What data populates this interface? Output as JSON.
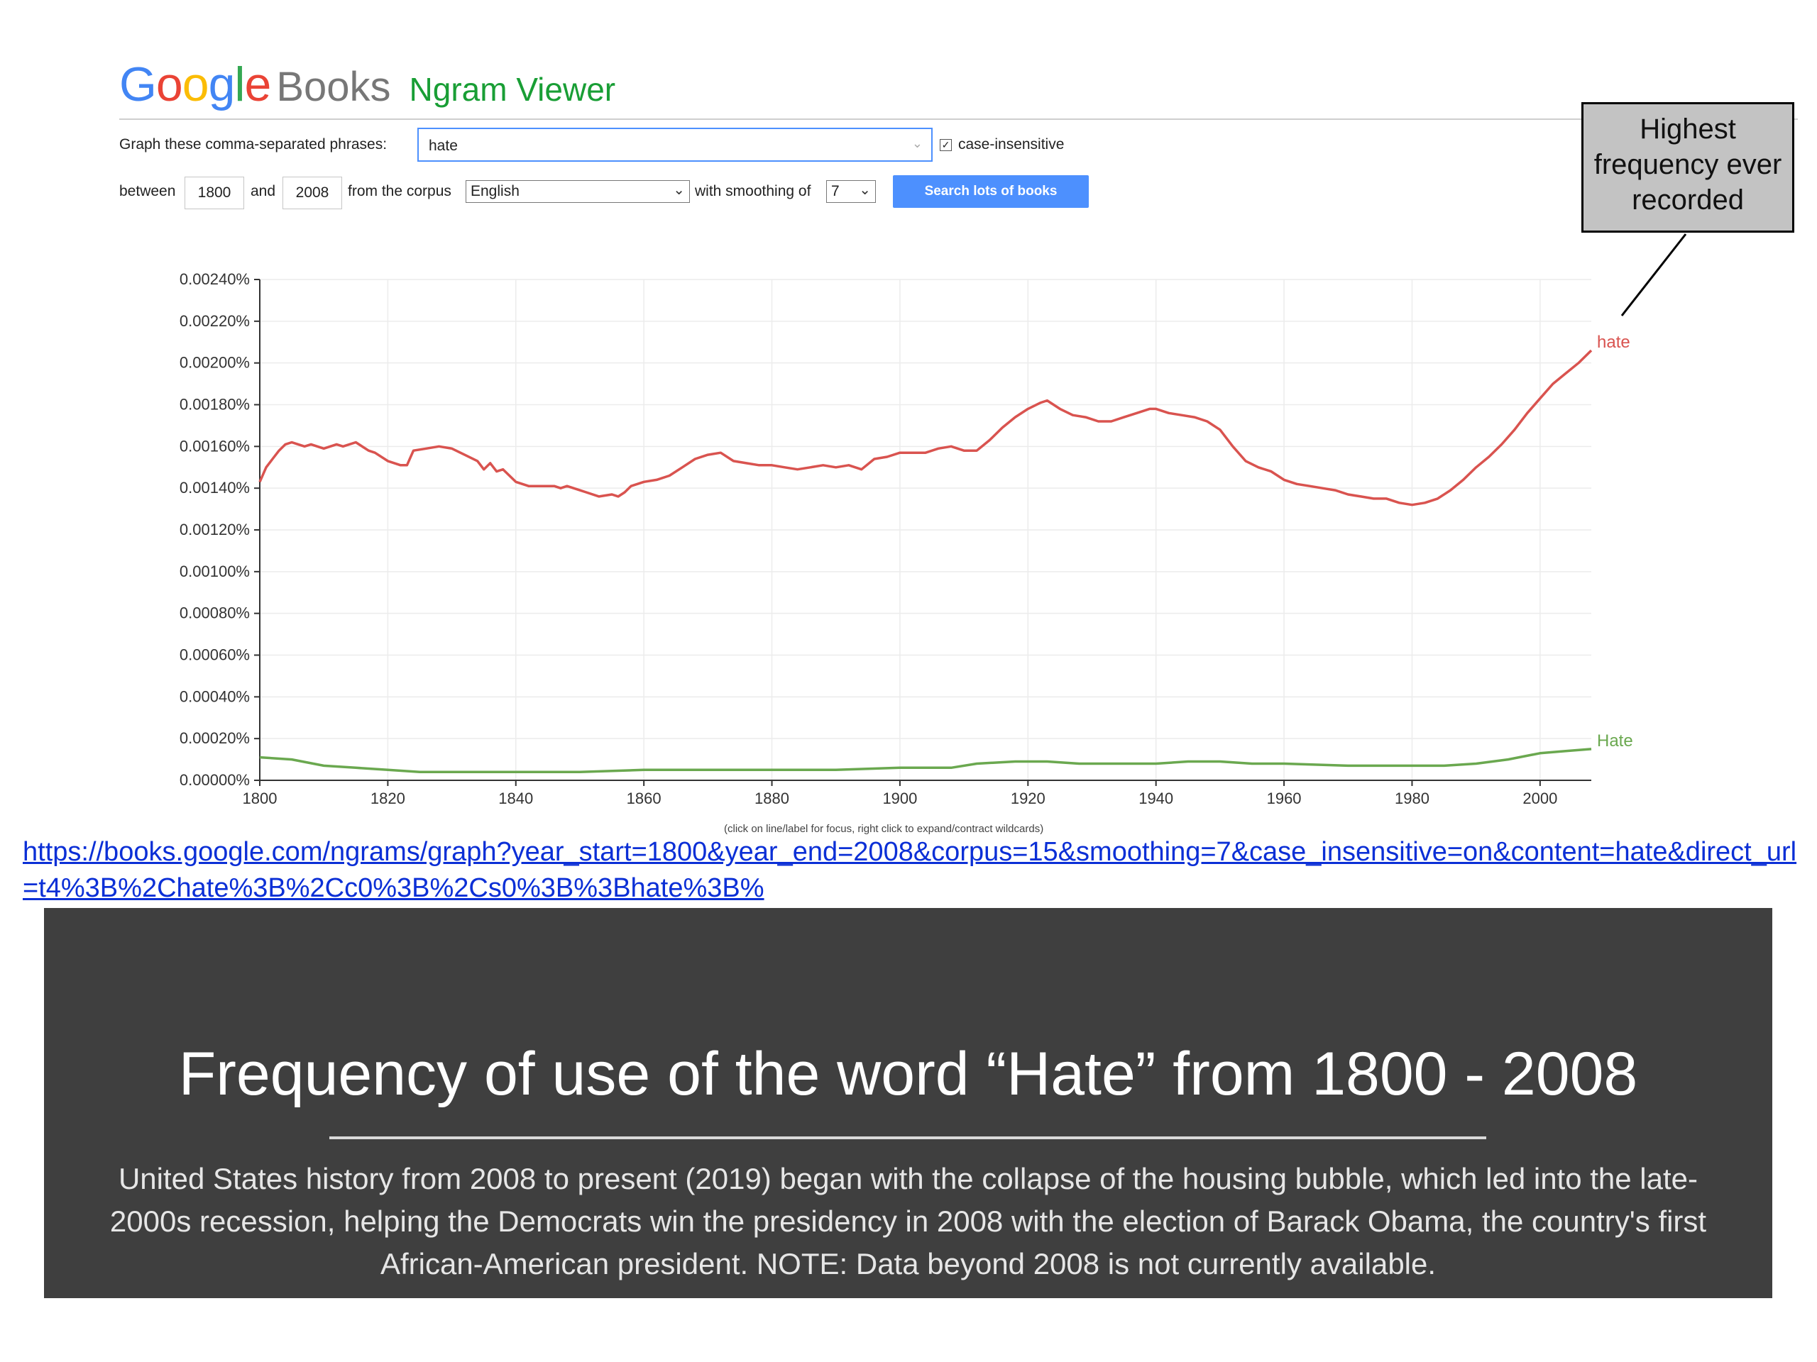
{
  "header": {
    "logo_letters": [
      {
        "ch": "G",
        "color": "#4285f4"
      },
      {
        "ch": "o",
        "color": "#ea4335"
      },
      {
        "ch": "o",
        "color": "#fbbc05"
      },
      {
        "ch": "g",
        "color": "#4285f4"
      },
      {
        "ch": "l",
        "color": "#34a853"
      },
      {
        "ch": "e",
        "color": "#ea4335"
      }
    ],
    "books_label": "Books",
    "app_title": "Ngram Viewer"
  },
  "form": {
    "phrases_label": "Graph these comma-separated phrases:",
    "phrases_value": "hate",
    "case_insensitive_label": "case-insensitive",
    "case_insensitive_checked": true,
    "between_label": "between",
    "year_start": "1800",
    "and_label": "and",
    "year_end": "2008",
    "corpus_label": "from the corpus",
    "corpus_value": "English",
    "smoothing_label": "with smoothing of",
    "smoothing_value": "7",
    "search_button_label": "Search lots of books"
  },
  "callout": {
    "text": "Highest\nfrequency ever\nrecorded"
  },
  "chart_data": {
    "type": "line",
    "title": "",
    "xlabel": "",
    "ylabel": "",
    "xlim": [
      1800,
      2008
    ],
    "ylim": [
      0,
      0.0024
    ],
    "x_ticks": [
      "1800",
      "1820",
      "1840",
      "1860",
      "1880",
      "1900",
      "1920",
      "1940",
      "1960",
      "1980",
      "2000"
    ],
    "y_ticks": [
      "0.00000%",
      "0.00020%",
      "0.00040%",
      "0.00060%",
      "0.00080%",
      "0.00100%",
      "0.00120%",
      "0.00140%",
      "0.00160%",
      "0.00180%",
      "0.00200%",
      "0.00220%",
      "0.00240%"
    ],
    "grid": true,
    "series": [
      {
        "name": "hate",
        "color": "#d9534f",
        "x": [
          1800,
          1801,
          1802,
          1803,
          1804,
          1805,
          1806,
          1807,
          1808,
          1810,
          1812,
          1813,
          1815,
          1817,
          1818,
          1820,
          1822,
          1823,
          1824,
          1826,
          1828,
          1830,
          1832,
          1834,
          1835,
          1836,
          1837,
          1838,
          1840,
          1842,
          1844,
          1846,
          1847,
          1848,
          1850,
          1851,
          1853,
          1855,
          1856,
          1857,
          1858,
          1860,
          1862,
          1864,
          1866,
          1868,
          1870,
          1872,
          1874,
          1876,
          1878,
          1880,
          1882,
          1884,
          1886,
          1888,
          1890,
          1892,
          1894,
          1896,
          1898,
          1900,
          1902,
          1904,
          1906,
          1908,
          1910,
          1912,
          1914,
          1916,
          1918,
          1920,
          1922,
          1923,
          1925,
          1927,
          1929,
          1931,
          1933,
          1935,
          1937,
          1939,
          1940,
          1942,
          1944,
          1946,
          1948,
          1950,
          1952,
          1954,
          1956,
          1958,
          1960,
          1962,
          1964,
          1966,
          1968,
          1970,
          1972,
          1974,
          1976,
          1978,
          1980,
          1982,
          1984,
          1986,
          1988,
          1990,
          1992,
          1994,
          1996,
          1998,
          2000,
          2002,
          2004,
          2006,
          2008
        ],
        "y": [
          0.00143,
          0.0015,
          0.00154,
          0.00158,
          0.00161,
          0.00162,
          0.00161,
          0.0016,
          0.00161,
          0.00159,
          0.00161,
          0.0016,
          0.00162,
          0.00158,
          0.00157,
          0.00153,
          0.00151,
          0.00151,
          0.00158,
          0.00159,
          0.0016,
          0.00159,
          0.00156,
          0.00153,
          0.00149,
          0.00152,
          0.00148,
          0.00149,
          0.00143,
          0.00141,
          0.00141,
          0.00141,
          0.0014,
          0.00141,
          0.00139,
          0.00138,
          0.00136,
          0.00137,
          0.00136,
          0.00138,
          0.00141,
          0.00143,
          0.00144,
          0.00146,
          0.0015,
          0.00154,
          0.00156,
          0.00157,
          0.00153,
          0.00152,
          0.00151,
          0.00151,
          0.0015,
          0.00149,
          0.0015,
          0.00151,
          0.0015,
          0.00151,
          0.00149,
          0.00154,
          0.00155,
          0.00157,
          0.00157,
          0.00157,
          0.00159,
          0.0016,
          0.00158,
          0.00158,
          0.00163,
          0.00169,
          0.00174,
          0.00178,
          0.00181,
          0.00182,
          0.00178,
          0.00175,
          0.00174,
          0.00172,
          0.00172,
          0.00174,
          0.00176,
          0.00178,
          0.00178,
          0.00176,
          0.00175,
          0.00174,
          0.00172,
          0.00168,
          0.0016,
          0.00153,
          0.0015,
          0.00148,
          0.00144,
          0.00142,
          0.00141,
          0.0014,
          0.00139,
          0.00137,
          0.00136,
          0.00135,
          0.00135,
          0.00133,
          0.00132,
          0.00133,
          0.00135,
          0.00139,
          0.00144,
          0.0015,
          0.00155,
          0.00161,
          0.00168,
          0.00176,
          0.00183,
          0.0019,
          0.00195,
          0.002,
          0.00206
        ]
      },
      {
        "name": "Hate",
        "color": "#6aa84f",
        "x": [
          1800,
          1805,
          1810,
          1815,
          1820,
          1825,
          1830,
          1835,
          1840,
          1850,
          1860,
          1870,
          1880,
          1890,
          1900,
          1908,
          1912,
          1918,
          1923,
          1928,
          1935,
          1940,
          1945,
          1950,
          1955,
          1960,
          1970,
          1980,
          1985,
          1990,
          1995,
          2000,
          2004,
          2008
        ],
        "y": [
          0.00011,
          0.0001,
          7e-05,
          6e-05,
          5e-05,
          4e-05,
          4e-05,
          4e-05,
          4e-05,
          4e-05,
          5e-05,
          5e-05,
          5e-05,
          5e-05,
          6e-05,
          6e-05,
          8e-05,
          9e-05,
          9e-05,
          8e-05,
          8e-05,
          8e-05,
          9e-05,
          9e-05,
          8e-05,
          8e-05,
          7e-05,
          7e-05,
          7e-05,
          8e-05,
          0.0001,
          0.00013,
          0.00014,
          0.00015
        ]
      }
    ],
    "note": "(click on line/label for focus, right click to expand/contract wildcards)"
  },
  "url": "https://books.google.com/ngrams/graph?year_start=1800&year_end=2008&corpus=15&smoothing=7&case_insensitive=on&content=hate&direct_url=t4%3B%2Chate%3B%2Cc0%3B%2Cs0%3B%3Bhate%3B%",
  "panel": {
    "title": "Frequency of use of the word “Hate” from 1800 - 2008",
    "body": "United States history from 2008 to present (2019) began with the collapse of the housing bubble, which led into the late-2000s recession, helping the Democrats win the presidency in 2008 with the election of Barack Obama, the country's first African-American president. NOTE:  Data beyond 2008 is not currently available."
  }
}
